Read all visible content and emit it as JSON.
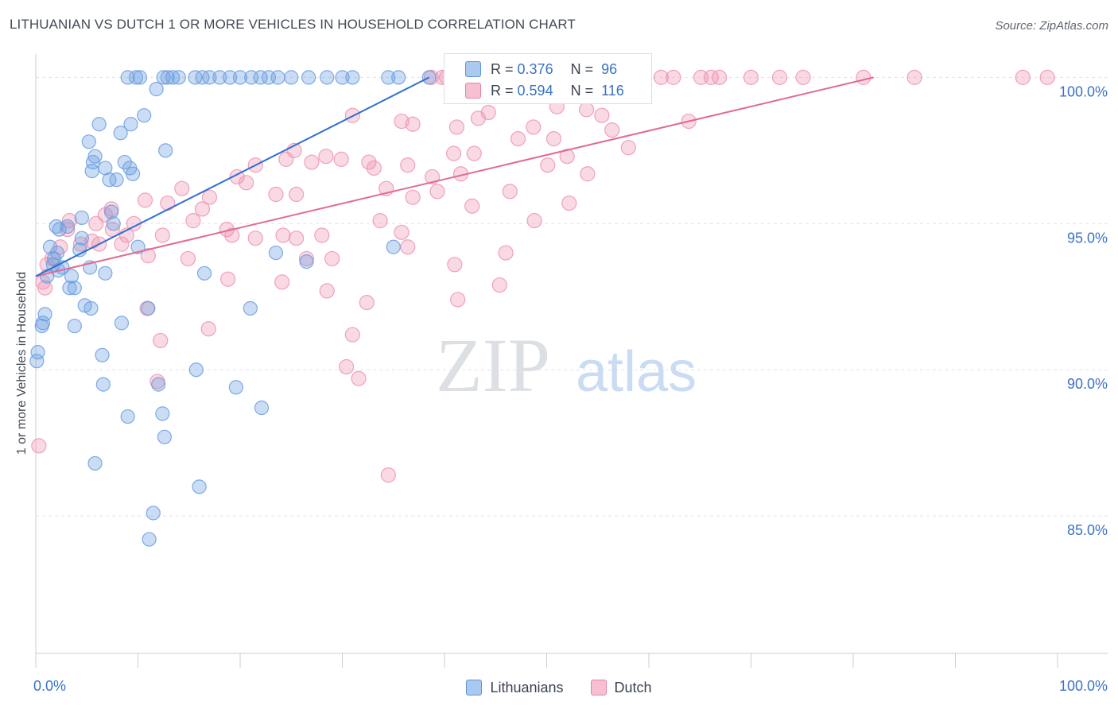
{
  "title": "LITHUANIAN VS DUTCH 1 OR MORE VEHICLES IN HOUSEHOLD CORRELATION CHART",
  "source": "Source: ZipAtlas.com",
  "watermark": {
    "zip": "ZIP",
    "atlas": "atlas"
  },
  "legend": {
    "r_label": "R =",
    "n_label": "N =",
    "rows": [
      {
        "name": "Lithuanians",
        "r": "0.376",
        "n": "96",
        "fill": "#a9c9f0",
        "stroke": "#5d93da"
      },
      {
        "name": "Dutch",
        "r": "0.594",
        "n": "116",
        "fill": "#f7bfd2",
        "stroke": "#e8829f"
      }
    ]
  },
  "colors": {
    "blue_line": "#2f6fd0",
    "pink_line": "#e06b94",
    "blue_point": "#6a9ee0",
    "pink_point": "#ee93b1",
    "tick_label": "#3a72c7",
    "grid": "#e1e4e8"
  },
  "chart_data": {
    "type": "scatter",
    "title": "LITHUANIAN VS DUTCH 1 OR MORE VEHICLES IN HOUSEHOLD CORRELATION CHART",
    "xlabel": "",
    "ylabel": "1 or more Vehicles in Household",
    "xlim": [
      0,
      100
    ],
    "ylim": [
      80.3,
      100.5
    ],
    "x_tick_labels": [
      "0.0%",
      "100.0%"
    ],
    "y_ticks": [
      85,
      90,
      95,
      100
    ],
    "y_tick_labels": [
      "85.0%",
      "90.0%",
      "95.0%",
      "100.0%"
    ],
    "series": [
      {
        "name": "Lithuanians",
        "trend": {
          "x0": 0,
          "y0": 93.2,
          "x1": 38.5,
          "y1": 100.0
        },
        "points": [
          [
            9.0,
            100
          ],
          [
            9.8,
            100
          ],
          [
            10.2,
            100
          ],
          [
            12.5,
            100
          ],
          [
            12.9,
            100
          ],
          [
            13.4,
            100
          ],
          [
            14.0,
            100
          ],
          [
            15.6,
            100
          ],
          [
            16.3,
            100
          ],
          [
            17.0,
            100
          ],
          [
            18.0,
            100
          ],
          [
            19.0,
            100
          ],
          [
            20.0,
            100
          ],
          [
            21.1,
            100
          ],
          [
            22.0,
            100
          ],
          [
            22.8,
            100
          ],
          [
            23.7,
            100
          ],
          [
            25.0,
            100
          ],
          [
            26.7,
            100
          ],
          [
            28.5,
            100
          ],
          [
            30.0,
            100
          ],
          [
            31.0,
            100
          ],
          [
            34.5,
            100
          ],
          [
            35.5,
            100
          ],
          [
            38.5,
            100
          ],
          [
            11.8,
            99.6
          ],
          [
            10.6,
            98.7
          ],
          [
            9.3,
            98.4
          ],
          [
            6.2,
            98.4
          ],
          [
            8.3,
            98.1
          ],
          [
            5.2,
            97.8
          ],
          [
            12.7,
            97.5
          ],
          [
            5.8,
            97.3
          ],
          [
            8.7,
            97.1
          ],
          [
            5.6,
            97.1
          ],
          [
            9.2,
            96.9
          ],
          [
            6.8,
            96.9
          ],
          [
            5.5,
            96.8
          ],
          [
            9.5,
            96.7
          ],
          [
            7.9,
            96.5
          ],
          [
            7.2,
            96.5
          ],
          [
            7.4,
            95.4
          ],
          [
            4.5,
            95.2
          ],
          [
            7.6,
            95.0
          ],
          [
            2.0,
            94.9
          ],
          [
            3.1,
            94.9
          ],
          [
            2.3,
            94.8
          ],
          [
            4.5,
            94.5
          ],
          [
            1.4,
            94.2
          ],
          [
            10.0,
            94.2
          ],
          [
            35.0,
            94.2
          ],
          [
            2.1,
            94.0
          ],
          [
            4.3,
            94.1
          ],
          [
            23.5,
            94.0
          ],
          [
            1.8,
            93.8
          ],
          [
            2.6,
            93.5
          ],
          [
            2.2,
            93.4
          ],
          [
            5.3,
            93.5
          ],
          [
            26.5,
            93.7
          ],
          [
            1.7,
            93.6
          ],
          [
            1.1,
            93.2
          ],
          [
            3.5,
            93.2
          ],
          [
            6.8,
            93.3
          ],
          [
            16.5,
            93.3
          ],
          [
            3.8,
            92.8
          ],
          [
            3.3,
            92.8
          ],
          [
            4.8,
            92.2
          ],
          [
            5.4,
            92.1
          ],
          [
            11.0,
            92.1
          ],
          [
            21.0,
            92.1
          ],
          [
            0.9,
            91.9
          ],
          [
            0.7,
            91.6
          ],
          [
            0.6,
            91.5
          ],
          [
            8.4,
            91.6
          ],
          [
            3.8,
            91.5
          ],
          [
            0.2,
            90.6
          ],
          [
            0.1,
            90.3
          ],
          [
            6.5,
            90.5
          ],
          [
            15.7,
            90.0
          ],
          [
            6.6,
            89.5
          ],
          [
            12.0,
            89.5
          ],
          [
            19.6,
            89.4
          ],
          [
            22.1,
            88.7
          ],
          [
            12.4,
            88.5
          ],
          [
            9.0,
            88.4
          ],
          [
            12.6,
            87.7
          ],
          [
            5.8,
            86.8
          ],
          [
            16.0,
            86.0
          ],
          [
            11.5,
            85.1
          ],
          [
            11.1,
            84.2
          ]
        ]
      },
      {
        "name": "Dutch",
        "trend": {
          "x0": 0,
          "y0": 93.2,
          "x1": 82.0,
          "y1": 100.0
        },
        "points": [
          [
            38.7,
            100
          ],
          [
            39.8,
            100
          ],
          [
            40.2,
            100
          ],
          [
            45.0,
            100
          ],
          [
            53.0,
            100
          ],
          [
            57.8,
            100
          ],
          [
            61.2,
            100
          ],
          [
            62.4,
            100
          ],
          [
            65.1,
            100
          ],
          [
            66.1,
            100
          ],
          [
            66.9,
            100
          ],
          [
            70.0,
            100
          ],
          [
            72.8,
            100
          ],
          [
            75.1,
            100
          ],
          [
            81.0,
            100
          ],
          [
            86.0,
            100
          ],
          [
            96.6,
            100
          ],
          [
            99.0,
            100
          ],
          [
            51.0,
            99.0
          ],
          [
            43.3,
            98.6
          ],
          [
            44.3,
            98.8
          ],
          [
            53.9,
            98.9
          ],
          [
            55.4,
            98.7
          ],
          [
            31.0,
            98.7
          ],
          [
            35.8,
            98.5
          ],
          [
            36.9,
            98.4
          ],
          [
            41.2,
            98.3
          ],
          [
            48.7,
            98.3
          ],
          [
            56.4,
            98.2
          ],
          [
            63.9,
            98.5
          ],
          [
            58.0,
            97.6
          ],
          [
            47.2,
            97.9
          ],
          [
            52.0,
            97.3
          ],
          [
            50.7,
            97.9
          ],
          [
            25.3,
            97.5
          ],
          [
            24.5,
            97.2
          ],
          [
            28.4,
            97.3
          ],
          [
            27.0,
            97.1
          ],
          [
            29.9,
            97.2
          ],
          [
            32.6,
            97.1
          ],
          [
            33.1,
            96.9
          ],
          [
            36.4,
            97.0
          ],
          [
            40.9,
            97.4
          ],
          [
            42.9,
            97.4
          ],
          [
            54.0,
            96.7
          ],
          [
            50.1,
            97.0
          ],
          [
            21.5,
            97.0
          ],
          [
            19.7,
            96.6
          ],
          [
            20.6,
            96.4
          ],
          [
            38.8,
            96.6
          ],
          [
            41.6,
            96.7
          ],
          [
            14.3,
            96.2
          ],
          [
            23.5,
            96.0
          ],
          [
            25.5,
            96.0
          ],
          [
            34.3,
            96.2
          ],
          [
            36.9,
            95.9
          ],
          [
            39.3,
            96.1
          ],
          [
            46.4,
            96.1
          ],
          [
            52.2,
            95.7
          ],
          [
            16.3,
            95.5
          ],
          [
            17.0,
            95.9
          ],
          [
            15.4,
            95.1
          ],
          [
            12.9,
            95.7
          ],
          [
            10.7,
            95.8
          ],
          [
            7.4,
            95.5
          ],
          [
            6.8,
            95.3
          ],
          [
            9.6,
            95.0
          ],
          [
            7.5,
            94.8
          ],
          [
            8.9,
            94.6
          ],
          [
            12.4,
            94.6
          ],
          [
            21.5,
            94.5
          ],
          [
            24.2,
            94.6
          ],
          [
            28.0,
            94.6
          ],
          [
            33.7,
            95.1
          ],
          [
            35.8,
            94.7
          ],
          [
            36.4,
            94.2
          ],
          [
            42.7,
            95.6
          ],
          [
            48.8,
            95.1
          ],
          [
            5.9,
            95.0
          ],
          [
            3.3,
            95.1
          ],
          [
            3.1,
            94.8
          ],
          [
            4.4,
            94.3
          ],
          [
            5.5,
            94.4
          ],
          [
            6.2,
            94.3
          ],
          [
            8.4,
            94.3
          ],
          [
            2.4,
            94.2
          ],
          [
            1.6,
            93.8
          ],
          [
            11.0,
            93.9
          ],
          [
            14.9,
            93.8
          ],
          [
            18.7,
            94.8
          ],
          [
            19.2,
            94.6
          ],
          [
            25.5,
            94.5
          ],
          [
            26.5,
            93.8
          ],
          [
            29.0,
            93.8
          ],
          [
            41.0,
            93.6
          ],
          [
            46.0,
            94.0
          ],
          [
            1.1,
            93.6
          ],
          [
            0.7,
            93.0
          ],
          [
            0.9,
            92.8
          ],
          [
            18.8,
            93.1
          ],
          [
            24.1,
            93.0
          ],
          [
            28.5,
            92.7
          ],
          [
            45.4,
            92.9
          ],
          [
            32.4,
            92.3
          ],
          [
            41.3,
            92.4
          ],
          [
            10.9,
            92.1
          ],
          [
            16.9,
            91.4
          ],
          [
            31.0,
            91.2
          ],
          [
            12.2,
            91.0
          ],
          [
            30.4,
            90.1
          ],
          [
            31.6,
            89.7
          ],
          [
            11.9,
            89.6
          ],
          [
            0.3,
            87.4
          ],
          [
            34.5,
            86.4
          ]
        ]
      }
    ]
  }
}
